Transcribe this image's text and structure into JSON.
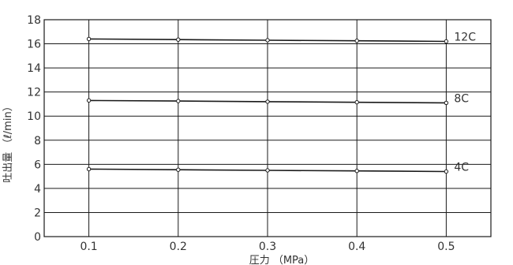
{
  "chart_data": {
    "type": "line",
    "title": "",
    "xlabel": "圧力 （MPa）",
    "ylabel": "吐出量 （ℓ/min）",
    "x": [
      0.1,
      0.2,
      0.3,
      0.4,
      0.5
    ],
    "x_tick_labels": [
      "0.1",
      "0.2",
      "0.3",
      "0.4",
      "0.5"
    ],
    "y_tick_labels": [
      "0",
      "2",
      "4",
      "6",
      "8",
      "10",
      "12",
      "14",
      "16",
      "18"
    ],
    "xlim": [
      0.05,
      0.55
    ],
    "ylim": [
      0,
      18
    ],
    "grid": true,
    "series": [
      {
        "name": "12C",
        "values": [
          16.4,
          16.35,
          16.3,
          16.25,
          16.2
        ]
      },
      {
        "name": "8C",
        "values": [
          11.3,
          11.25,
          11.2,
          11.15,
          11.1
        ]
      },
      {
        "name": "4C",
        "values": [
          5.6,
          5.55,
          5.5,
          5.45,
          5.4
        ]
      }
    ]
  }
}
